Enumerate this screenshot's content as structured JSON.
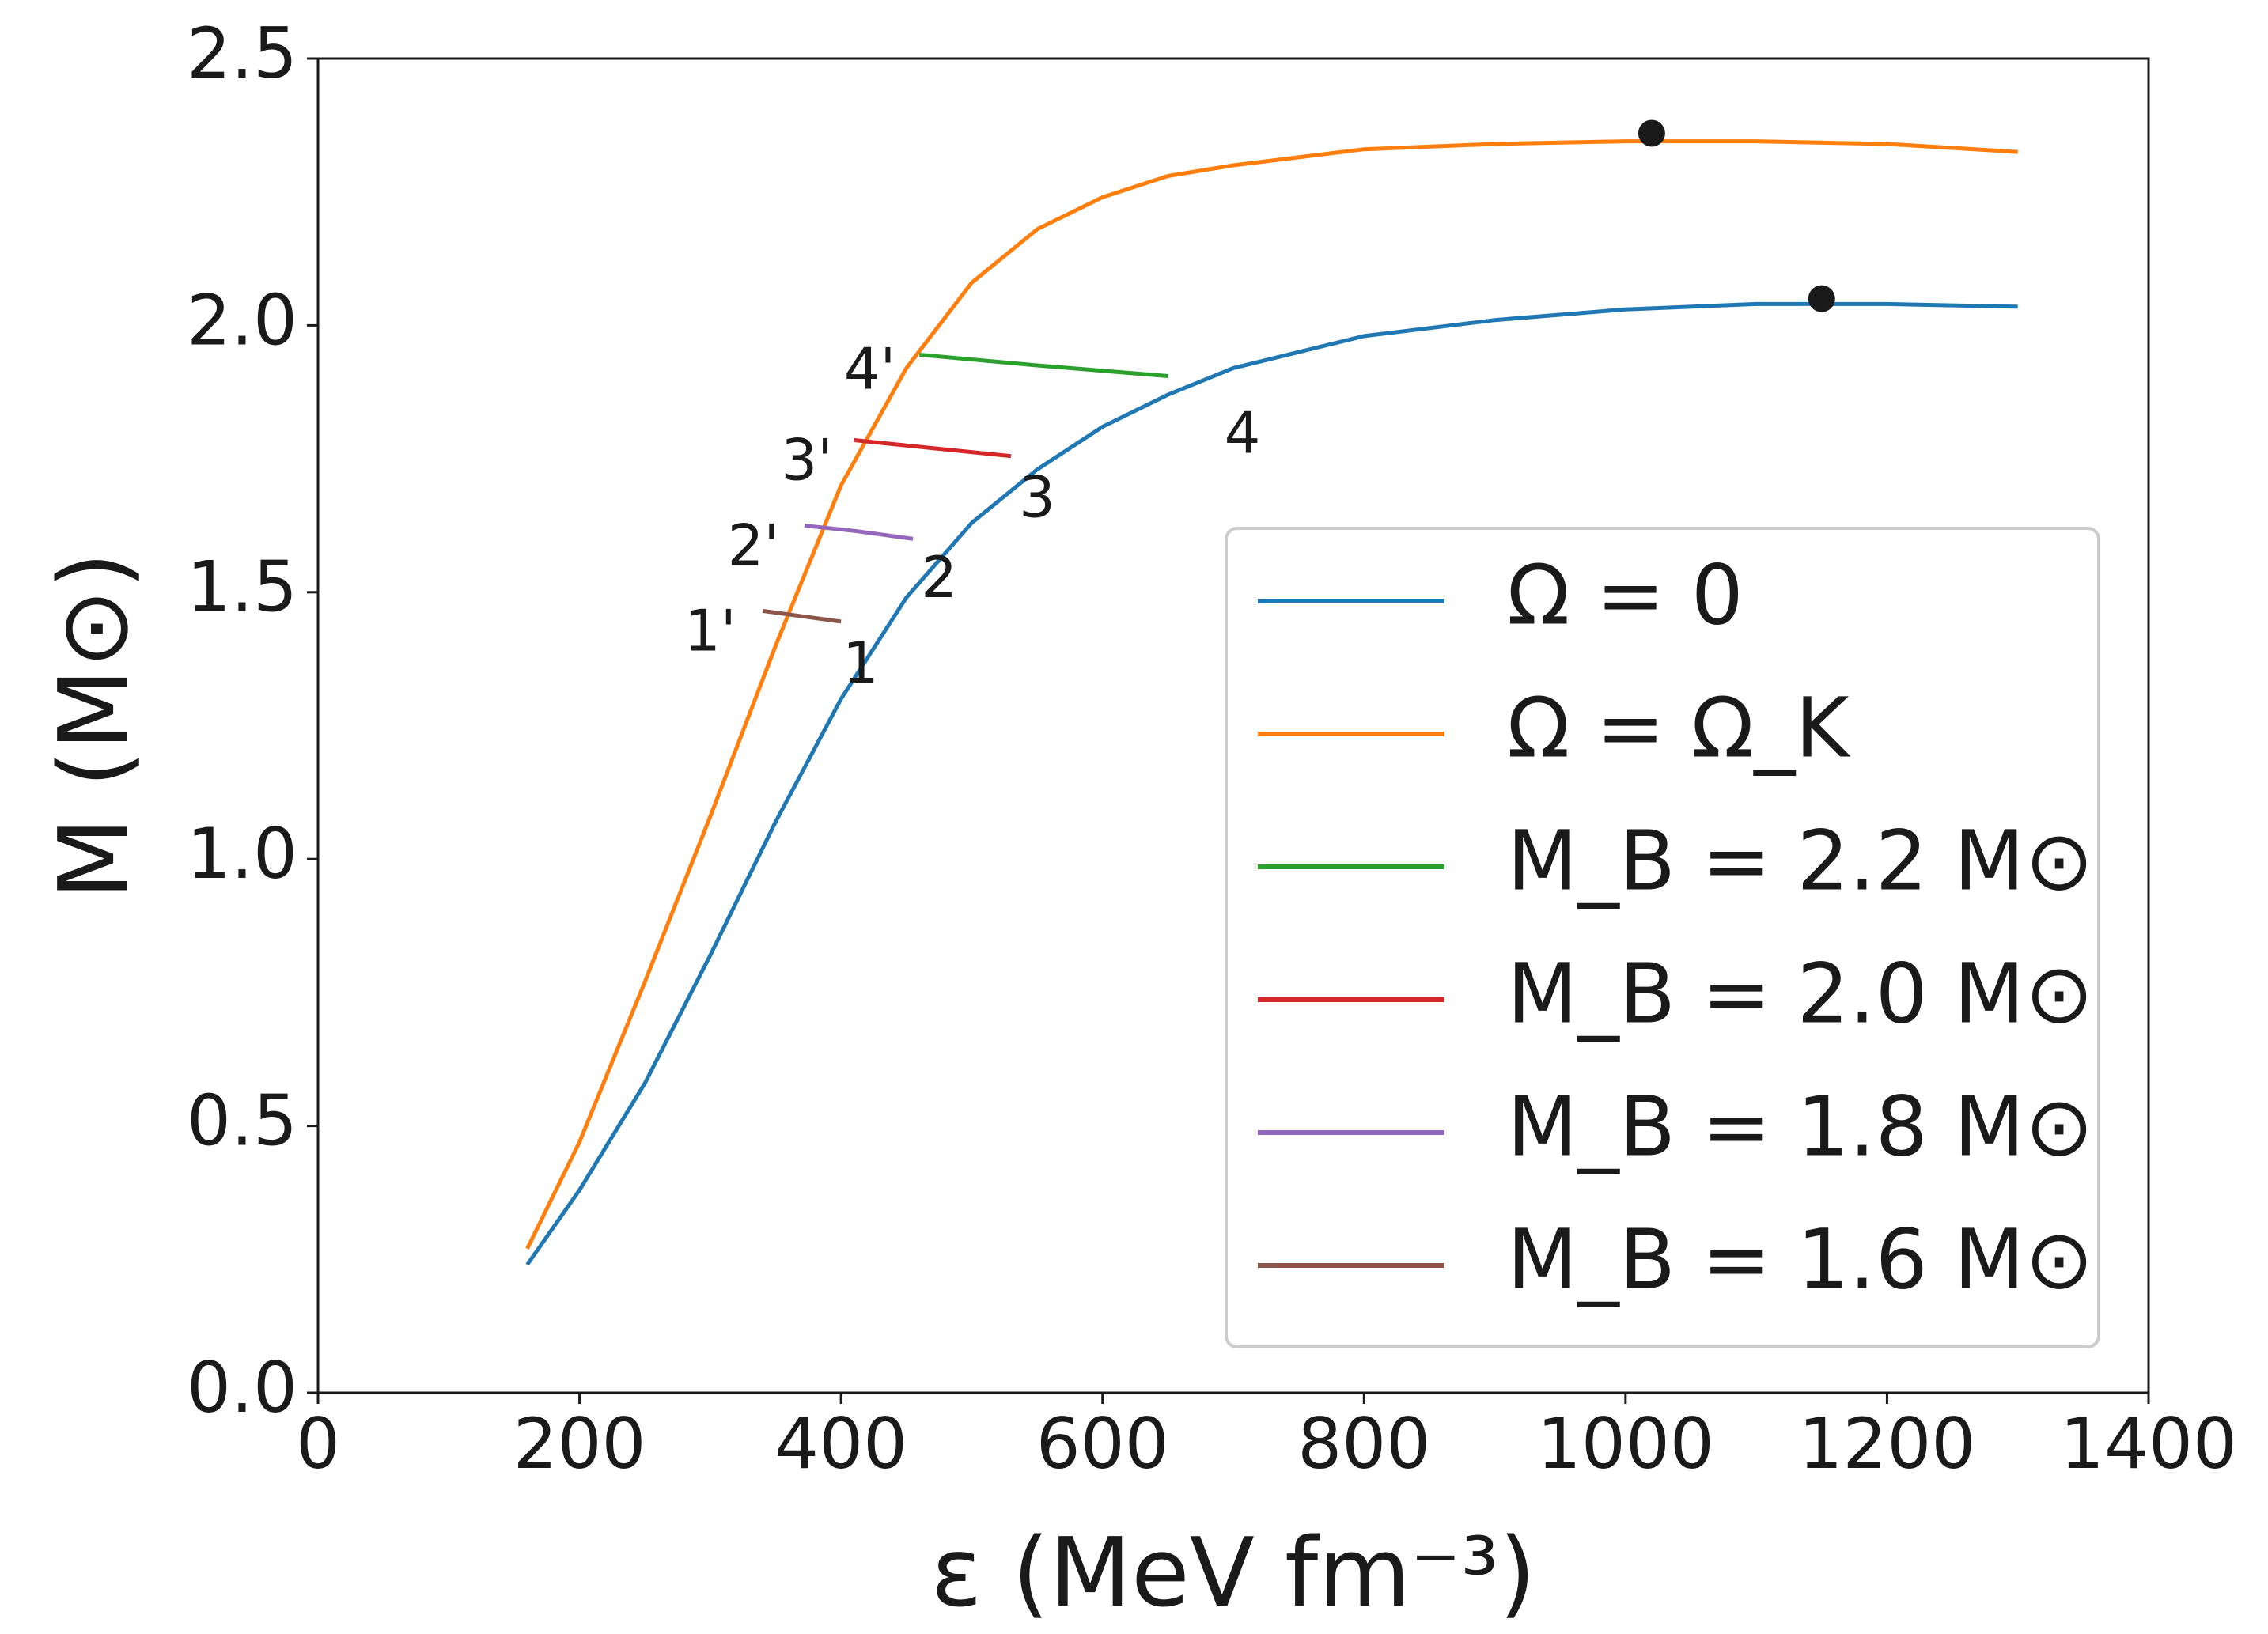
{
  "chart_data": {
    "type": "line",
    "xlabel": "ε (MeV fm⁻³)",
    "ylabel": "M (M⊙)",
    "xlim": [
      0,
      1400
    ],
    "ylim": [
      0,
      2.5
    ],
    "xticks": [
      0,
      200,
      400,
      600,
      800,
      1000,
      1200,
      1400
    ],
    "xtick_labels": [
      "0",
      "200",
      "400",
      "600",
      "800",
      "1000",
      "1200",
      "1400"
    ],
    "yticks": [
      0,
      0.5,
      1.0,
      1.5,
      2.0,
      2.5
    ],
    "ytick_labels": [
      "0.0",
      "0.5",
      "1.0",
      "1.5",
      "2.0",
      "2.5"
    ],
    "grid": false,
    "legend_position": "lower-right",
    "series": [
      {
        "name": "Ω = 0",
        "color": "#1f77b4",
        "points": [
          [
            160,
            0.24
          ],
          [
            200,
            0.38
          ],
          [
            250,
            0.58
          ],
          [
            300,
            0.82
          ],
          [
            350,
            1.07
          ],
          [
            400,
            1.3
          ],
          [
            450,
            1.49
          ],
          [
            500,
            1.63
          ],
          [
            550,
            1.73
          ],
          [
            600,
            1.81
          ],
          [
            650,
            1.87
          ],
          [
            700,
            1.92
          ],
          [
            800,
            1.98
          ],
          [
            900,
            2.01
          ],
          [
            1000,
            2.03
          ],
          [
            1100,
            2.04
          ],
          [
            1200,
            2.04
          ],
          [
            1300,
            2.035
          ]
        ]
      },
      {
        "name": "Ω = Ω_K",
        "color": "#ff7f0e",
        "points": [
          [
            160,
            0.27
          ],
          [
            200,
            0.47
          ],
          [
            250,
            0.77
          ],
          [
            300,
            1.08
          ],
          [
            350,
            1.4
          ],
          [
            400,
            1.7
          ],
          [
            450,
            1.92
          ],
          [
            500,
            2.08
          ],
          [
            550,
            2.18
          ],
          [
            600,
            2.24
          ],
          [
            650,
            2.28
          ],
          [
            700,
            2.3
          ],
          [
            800,
            2.33
          ],
          [
            900,
            2.34
          ],
          [
            1000,
            2.345
          ],
          [
            1100,
            2.345
          ],
          [
            1200,
            2.34
          ],
          [
            1300,
            2.325
          ]
        ]
      },
      {
        "name": "M_B = 2.2 M⊙",
        "color": "#2ca02c",
        "points": [
          [
            460,
            1.945
          ],
          [
            550,
            1.925
          ],
          [
            600,
            1.915
          ],
          [
            650,
            1.905
          ]
        ]
      },
      {
        "name": "M_B = 2.0 M⊙",
        "color": "#d62728",
        "points": [
          [
            410,
            1.785
          ],
          [
            470,
            1.77
          ],
          [
            530,
            1.755
          ]
        ]
      },
      {
        "name": "M_B = 1.8 M⊙",
        "color": "#9467bd",
        "points": [
          [
            372,
            1.625
          ],
          [
            410,
            1.615
          ],
          [
            455,
            1.6
          ]
        ]
      },
      {
        "name": "M_B = 1.6 M⊙",
        "color": "#8c564b",
        "points": [
          [
            340,
            1.465
          ],
          [
            370,
            1.455
          ],
          [
            400,
            1.445
          ]
        ]
      }
    ],
    "max_mass_markers": [
      {
        "series": "Ω = Ω_K",
        "x": 1020,
        "y": 2.36
      },
      {
        "series": "Ω = 0",
        "x": 1150,
        "y": 2.05
      }
    ],
    "annotations": [
      {
        "text": "1",
        "x": 415,
        "y": 1.36
      },
      {
        "text": "2",
        "x": 475,
        "y": 1.52
      },
      {
        "text": "3",
        "x": 550,
        "y": 1.67
      },
      {
        "text": "4",
        "x": 707,
        "y": 1.79
      },
      {
        "text": "1'",
        "x": 300,
        "y": 1.42
      },
      {
        "text": "2'",
        "x": 333,
        "y": 1.58
      },
      {
        "text": "3'",
        "x": 374,
        "y": 1.74
      },
      {
        "text": "4'",
        "x": 422,
        "y": 1.91
      }
    ],
    "legend": [
      {
        "label": "Ω = 0",
        "color": "#1f77b4"
      },
      {
        "label": "Ω = Ω_K",
        "color": "#ff7f0e"
      },
      {
        "label": "M_B = 2.2 M⊙",
        "color": "#2ca02c"
      },
      {
        "label": "M_B = 2.0 M⊙",
        "color": "#d62728"
      },
      {
        "label": "M_B = 1.8 M⊙",
        "color": "#9467bd"
      },
      {
        "label": "M_B = 1.6 M⊙",
        "color": "#8c564b"
      }
    ]
  }
}
